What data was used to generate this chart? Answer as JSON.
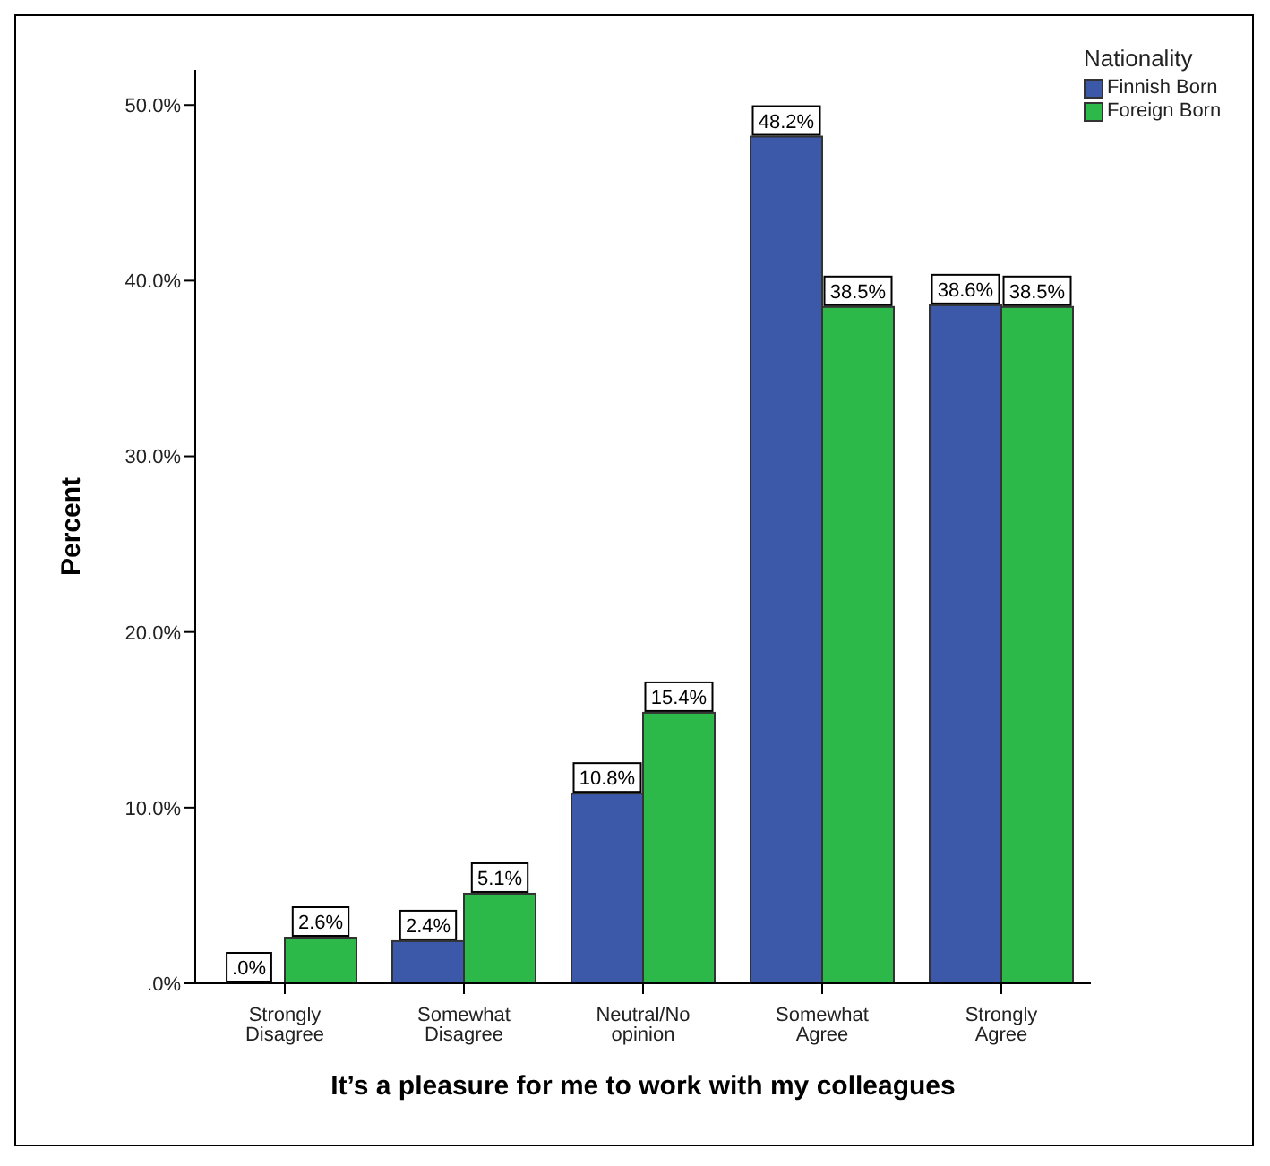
{
  "chart_data": {
    "type": "bar",
    "xlabel": "It’s a pleasure for me to work with my colleagues",
    "ylabel": "Percent",
    "legend_title": "Nationality",
    "legend": "top right",
    "categories": [
      "Strongly Disagree",
      "Somewhat Disagree",
      "Neutral/No opinion",
      "Somewhat Agree",
      "Strongly Agree"
    ],
    "series": [
      {
        "name": "Finnish Born",
        "color": "#3c58a8",
        "values": [
          0,
          2.4,
          10.8,
          48.2,
          38.6
        ],
        "value_labels": [
          ".0%",
          "2.4%",
          "10.8%",
          "48.2%",
          "38.6%"
        ]
      },
      {
        "name": "Foreign Born",
        "color": "#2db84a",
        "values": [
          2.6,
          5.1,
          15.4,
          38.5,
          38.5
        ],
        "value_labels": [
          "2.6%",
          "5.1%",
          "15.4%",
          "38.5%",
          "38.5%"
        ]
      }
    ],
    "ylim": [
      0,
      52
    ],
    "yticks": [
      {
        "value": 0,
        "label": ".0%"
      },
      {
        "value": 10,
        "label": "10.0%"
      },
      {
        "value": 20,
        "label": "20.0%"
      },
      {
        "value": 30,
        "label": "30.0%"
      },
      {
        "value": 40,
        "label": "40.0%"
      },
      {
        "value": 50,
        "label": "50.0%"
      }
    ],
    "grid": false
  }
}
